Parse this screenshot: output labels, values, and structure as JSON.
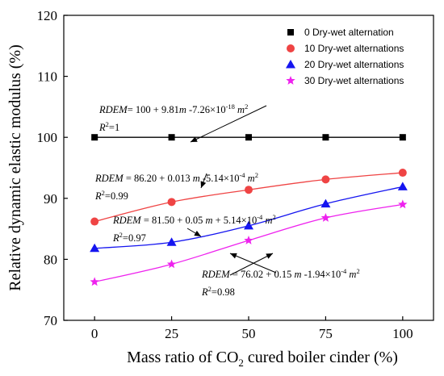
{
  "chart_data": {
    "type": "scatter",
    "xlabel_parts": [
      "Mass ratio of CO",
      "2",
      " cured boiler cinder (%)"
    ],
    "ylabel": "Relative dynamic elastic modulus (%)",
    "x": [
      0,
      25,
      50,
      75,
      100
    ],
    "xlim": [
      -10,
      110
    ],
    "ylim": [
      70,
      120
    ],
    "xticks": [
      "0",
      "25",
      "50",
      "75",
      "100"
    ],
    "yticks": [
      "70",
      "80",
      "90",
      "100",
      "110",
      "120"
    ],
    "grid": false,
    "legend_position": "top-right",
    "series": [
      {
        "name": "0 Dry-wet alternation",
        "marker": "square",
        "color": "#000000",
        "values": [
          100,
          100,
          100,
          100,
          100
        ],
        "fit": {
          "a": 100,
          "b": 9.81,
          "c": -7.26e-18
        },
        "equation": {
          "lhs": "RDEM",
          "rhs_parts": [
            "= 100 + 9.81",
            "m",
            " -7.26×10",
            "-18",
            " m",
            "2"
          ],
          "r2_value": "=1"
        }
      },
      {
        "name": "10 Dry-wet alternations",
        "marker": "circle",
        "color": "#ef4444",
        "values": [
          86.2,
          89.4,
          91.4,
          93.1,
          94.2
        ],
        "fit": {
          "a": 86.2,
          "b": 0.013,
          "c": -0.000514
        },
        "equation": {
          "lhs": "RDEM",
          "rhs_parts": [
            " = 86.20 + 0.013 ",
            "m",
            " -5.14×10",
            "-4",
            " m",
            "2"
          ],
          "r2_value": "=0.99"
        }
      },
      {
        "name": "20 Dry-wet alternations",
        "marker": "triangle",
        "color": "#1515f0",
        "values": [
          81.8,
          82.8,
          85.5,
          89.1,
          91.9
        ],
        "fit": {
          "a": 81.5,
          "b": 0.05,
          "c": 0.000514
        },
        "equation": {
          "lhs": "RDEM",
          "rhs_parts": [
            "   = 81.50 + 0.05 ",
            "m",
            " + 5.14×10",
            "-4",
            " m",
            "2"
          ],
          "r2_value": "=0.97"
        }
      },
      {
        "name": "30 Dry-wet alternations",
        "marker": "star",
        "color": "#ee22ee",
        "values": [
          76.3,
          79.2,
          83.1,
          86.8,
          89.0
        ],
        "fit": {
          "a": 76.02,
          "b": 0.15,
          "c": -0.000194
        },
        "equation": {
          "lhs": "RDEM",
          "rhs_parts": [
            " = 76.02 + 0.15 ",
            "m",
            " -1.94×10",
            "-4",
            " m",
            "2"
          ],
          "r2_value": "=0.98"
        }
      }
    ]
  }
}
